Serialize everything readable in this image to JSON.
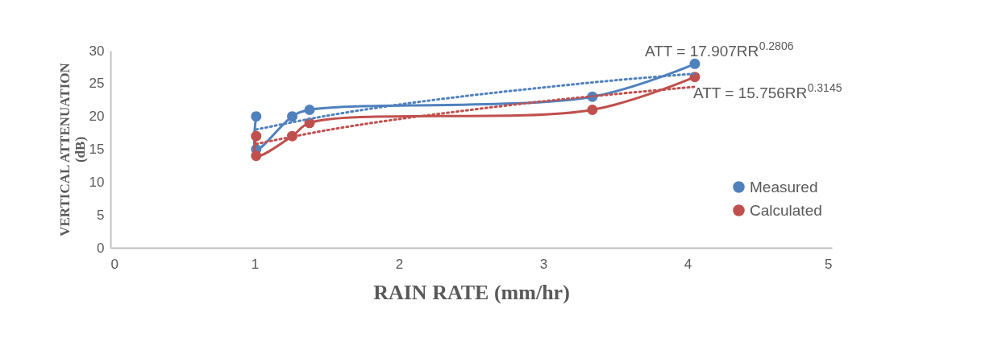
{
  "chart_data": {
    "type": "line",
    "xlabel": "RAIN RATE (mm/hr)",
    "ylabel": "VERTICAL ATTENUATION (dB)",
    "xlim": [
      0,
      5
    ],
    "xticks": [
      0,
      1,
      2,
      3,
      4,
      5
    ],
    "ylim": [
      0,
      30
    ],
    "yticks": [
      0,
      5,
      10,
      15,
      20,
      25,
      30
    ],
    "grid": false,
    "legend": "right",
    "marker": "circle",
    "series": [
      {
        "name": "Measured",
        "color": "#4f81bd",
        "x": [
          1.01,
          1.01,
          1.26,
          1.38,
          3.34,
          4.05
        ],
        "values": [
          20,
          15,
          20,
          21,
          23,
          28
        ]
      },
      {
        "name": "Calculated",
        "color": "#c0504d",
        "x": [
          1.01,
          1.01,
          1.26,
          1.38,
          3.34,
          4.05
        ],
        "values": [
          17,
          14,
          17,
          19,
          21,
          26
        ]
      },
      {
        "type": "line",
        "color": "#4f81bd",
        "line_style": "dotted",
        "marker": "none",
        "x": [
          1.01,
          1.5,
          2,
          2.5,
          3,
          3.5,
          4.05
        ],
        "values": [
          18.0,
          20.1,
          21.8,
          23.2,
          24.4,
          25.5,
          26.5
        ]
      },
      {
        "type": "line",
        "color": "#c0504d",
        "line_style": "dotted",
        "marker": "none",
        "x": [
          1.01,
          1.5,
          2,
          2.5,
          3,
          3.5,
          4.05
        ],
        "values": [
          15.8,
          17.9,
          19.6,
          21.0,
          22.3,
          23.4,
          24.5
        ]
      }
    ],
    "annotations": [
      "ATT = 17.907RR$^{0.2806}$",
      "ATT = 15.756RR$^{0.3145}$"
    ]
  }
}
